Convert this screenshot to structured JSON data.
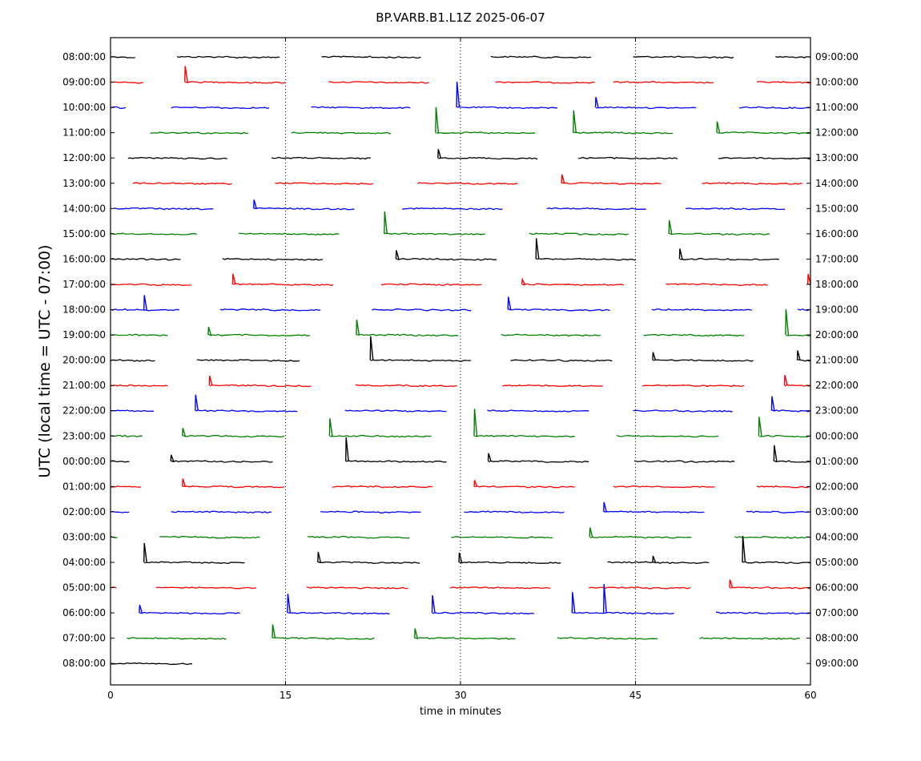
{
  "chart_data": {
    "type": "line",
    "title": "BP.VARB.B1.L1Z 2025-06-07",
    "xlabel": "time in minutes",
    "ylabel": "UTC (local time = UTC - 07:00)",
    "xlim": [
      0,
      60
    ],
    "xticks": [
      0,
      15,
      30,
      45,
      60
    ],
    "grid_x": [
      15,
      30,
      45
    ],
    "colors": [
      "#000000",
      "#ff0000",
      "#0000ff",
      "#008000"
    ],
    "rows": [
      {
        "left": "08:00:00",
        "right": "09:00:00",
        "segments": [
          [
            0,
            2.1
          ],
          [
            5.7,
            14.5
          ],
          [
            18.1,
            26.6
          ],
          [
            32.6,
            41.2
          ],
          [
            44.8,
            53.4
          ],
          [
            57,
            60
          ]
        ],
        "spikes": []
      },
      {
        "left": "09:00:00",
        "right": "10:00:00",
        "segments": [
          [
            0,
            2.8
          ],
          [
            6.4,
            15
          ],
          [
            18.7,
            27.3
          ],
          [
            33,
            41.5
          ],
          [
            43.1,
            51.7
          ],
          [
            55.4,
            60
          ]
        ],
        "spikes": [
          {
            "x": 6.4,
            "h": 20
          }
        ]
      },
      {
        "left": "10:00:00",
        "right": "11:00:00",
        "segments": [
          [
            0,
            1.3
          ],
          [
            5.2,
            13.6
          ],
          [
            17.2,
            25.7
          ],
          [
            29.7,
            38.3
          ],
          [
            41.6,
            50.2
          ],
          [
            53.9,
            60
          ]
        ],
        "spikes": [
          {
            "x": 29.7,
            "h": 32
          },
          {
            "x": 41.6,
            "h": 13
          }
        ]
      },
      {
        "left": "11:00:00",
        "right": "12:00:00",
        "segments": [
          [
            3.4,
            11.8
          ],
          [
            15.5,
            24
          ],
          [
            27.9,
            36.4
          ],
          [
            39.7,
            48.2
          ],
          [
            52,
            60
          ]
        ],
        "spikes": [
          {
            "x": 27.9,
            "h": 32
          },
          {
            "x": 39.7,
            "h": 28
          },
          {
            "x": 52,
            "h": 14
          }
        ]
      },
      {
        "left": "12:00:00",
        "right": "13:00:00",
        "segments": [
          [
            1.5,
            10
          ],
          [
            13.8,
            22.3
          ],
          [
            28.1,
            36.6
          ],
          [
            40.1,
            48.6
          ],
          [
            52.1,
            60
          ]
        ],
        "spikes": [
          {
            "x": 28.1,
            "h": 11
          }
        ]
      },
      {
        "left": "13:00:00",
        "right": "14:00:00",
        "segments": [
          [
            1.9,
            10.4
          ],
          [
            14.1,
            22.5
          ],
          [
            26.3,
            34.9
          ],
          [
            38.7,
            47.2
          ],
          [
            50.7,
            59.3
          ]
        ],
        "spikes": [
          {
            "x": 38.7,
            "h": 11
          }
        ]
      },
      {
        "left": "14:00:00",
        "right": "15:00:00",
        "segments": [
          [
            0.3,
            8.8
          ],
          [
            12.3,
            20.9
          ],
          [
            25,
            33.6
          ],
          [
            37.4,
            45.9
          ],
          [
            49.3,
            57.8
          ]
        ],
        "spikes": [
          {
            "x": 12.3,
            "h": 11
          }
        ]
      },
      {
        "left": "15:00:00",
        "right": "16:00:00",
        "segments": [
          [
            0,
            7.4
          ],
          [
            11,
            19.6
          ],
          [
            23.5,
            32.1
          ],
          [
            35.9,
            44.4
          ],
          [
            47.9,
            56.5
          ]
        ],
        "spikes": [
          {
            "x": 23.5,
            "h": 28
          },
          {
            "x": 47.9,
            "h": 17
          }
        ]
      },
      {
        "left": "16:00:00",
        "right": "17:00:00",
        "segments": [
          [
            0,
            6
          ],
          [
            9.6,
            18.2
          ],
          [
            24.5,
            33.1
          ],
          [
            36.5,
            45
          ],
          [
            48.8,
            57.3
          ]
        ],
        "spikes": [
          {
            "x": 24.5,
            "h": 11
          },
          {
            "x": 36.5,
            "h": 26
          },
          {
            "x": 48.8,
            "h": 13
          }
        ]
      },
      {
        "left": "17:00:00",
        "right": "18:00:00",
        "segments": [
          [
            0,
            6.9
          ],
          [
            10.5,
            19.1
          ],
          [
            23.2,
            31.8
          ],
          [
            35.3,
            44
          ],
          [
            47.6,
            56.3
          ],
          [
            59.8,
            60
          ]
        ],
        "spikes": [
          {
            "x": 10.5,
            "h": 13
          },
          {
            "x": 35.3,
            "h": 6
          },
          {
            "x": 59.8,
            "h": 13
          }
        ]
      },
      {
        "left": "18:00:00",
        "right": "19:00:00",
        "segments": [
          [
            0,
            5.9
          ],
          [
            9.4,
            18
          ],
          [
            22.4,
            30.9
          ],
          [
            34.1,
            42.8
          ],
          [
            46.4,
            55
          ],
          [
            58.9,
            60
          ]
        ],
        "spikes": [
          {
            "x": 2.9,
            "h": 18
          },
          {
            "x": 34.1,
            "h": 16
          }
        ]
      },
      {
        "left": "19:00:00",
        "right": "20:00:00",
        "segments": [
          [
            0,
            4.9
          ],
          [
            8.4,
            17.1
          ],
          [
            21.1,
            29.8
          ],
          [
            33.5,
            42
          ],
          [
            45.7,
            54.3
          ],
          [
            57.9,
            60
          ]
        ],
        "spikes": [
          {
            "x": 8.4,
            "h": 10
          },
          {
            "x": 21.1,
            "h": 19
          },
          {
            "x": 57.9,
            "h": 32
          }
        ]
      },
      {
        "left": "20:00:00",
        "right": "21:00:00",
        "segments": [
          [
            0,
            3.8
          ],
          [
            7.4,
            16.2
          ],
          [
            22.3,
            30.9
          ],
          [
            34.3,
            43
          ],
          [
            46.5,
            55.1
          ],
          [
            58.9,
            60
          ]
        ],
        "spikes": [
          {
            "x": 22.3,
            "h": 30
          },
          {
            "x": 46.5,
            "h": 10
          },
          {
            "x": 58.9,
            "h": 12
          }
        ]
      },
      {
        "left": "21:00:00",
        "right": "22:00:00",
        "segments": [
          [
            0,
            4.9
          ],
          [
            8.5,
            17.2
          ],
          [
            21,
            29.7
          ],
          [
            33.6,
            42.2
          ],
          [
            45.6,
            54.3
          ],
          [
            57.8,
            60
          ]
        ],
        "spikes": [
          {
            "x": 8.5,
            "h": 12
          },
          {
            "x": 57.8,
            "h": 13
          }
        ]
      },
      {
        "left": "22:00:00",
        "right": "23:00:00",
        "segments": [
          [
            0,
            3.7
          ],
          [
            7.3,
            16
          ],
          [
            20.1,
            28.8
          ],
          [
            32.3,
            41
          ],
          [
            44.8,
            53.3
          ],
          [
            56.7,
            60
          ]
        ],
        "spikes": [
          {
            "x": 7.3,
            "h": 20
          },
          {
            "x": 56.7,
            "h": 18
          }
        ]
      },
      {
        "left": "23:00:00",
        "right": "00:00:00",
        "segments": [
          [
            0,
            2.7
          ],
          [
            6.2,
            14.9
          ],
          [
            18.8,
            27.5
          ],
          [
            31.2,
            39.8
          ],
          [
            43.4,
            52.1
          ],
          [
            55.6,
            60
          ]
        ],
        "spikes": [
          {
            "x": 6.2,
            "h": 10
          },
          {
            "x": 18.8,
            "h": 22
          },
          {
            "x": 31.2,
            "h": 34
          },
          {
            "x": 55.6,
            "h": 24
          }
        ]
      },
      {
        "left": "00:00:00",
        "right": "01:00:00",
        "segments": [
          [
            0,
            1.6
          ],
          [
            5.2,
            13.9
          ],
          [
            20.2,
            28.8
          ],
          [
            32.4,
            41
          ],
          [
            44.9,
            53.5
          ],
          [
            56.9,
            60
          ]
        ],
        "spikes": [
          {
            "x": 5.2,
            "h": 8
          },
          {
            "x": 20.2,
            "h": 30
          },
          {
            "x": 32.4,
            "h": 10
          },
          {
            "x": 56.9,
            "h": 20
          }
        ]
      },
      {
        "left": "01:00:00",
        "right": "02:00:00",
        "segments": [
          [
            0,
            2.6
          ],
          [
            6.2,
            14.9
          ],
          [
            19,
            27.6
          ],
          [
            31.2,
            39.8
          ],
          [
            43.1,
            51.8
          ],
          [
            55.4,
            60
          ]
        ],
        "spikes": [
          {
            "x": 6.2,
            "h": 10
          },
          {
            "x": 31.2,
            "h": 8
          }
        ]
      },
      {
        "left": "02:00:00",
        "right": "03:00:00",
        "segments": [
          [
            0,
            1.6
          ],
          [
            5.2,
            13.8
          ],
          [
            18,
            26.6
          ],
          [
            30.3,
            38.9
          ],
          [
            42.3,
            50.9
          ],
          [
            54.5,
            60
          ]
        ],
        "spikes": [
          {
            "x": 42.3,
            "h": 12
          }
        ]
      },
      {
        "left": "03:00:00",
        "right": "04:00:00",
        "segments": [
          [
            0,
            0.6
          ],
          [
            4.2,
            12.8
          ],
          [
            16.9,
            25.6
          ],
          [
            29.2,
            37.9
          ],
          [
            41.1,
            49.8
          ],
          [
            53.5,
            60
          ]
        ],
        "spikes": [
          {
            "x": 41.1,
            "h": 12
          }
        ]
      },
      {
        "left": "04:00:00",
        "right": "05:00:00",
        "segments": [
          [
            2.9,
            11.5
          ],
          [
            17.8,
            26.5
          ],
          [
            29.9,
            38.6
          ],
          [
            42.6,
            51.3
          ],
          [
            54.2,
            60
          ]
        ],
        "spikes": [
          {
            "x": 2.9,
            "h": 24
          },
          {
            "x": 17.8,
            "h": 13
          },
          {
            "x": 29.9,
            "h": 12
          },
          {
            "x": 46.5,
            "h": 8
          },
          {
            "x": 54.2,
            "h": 33
          }
        ]
      },
      {
        "left": "05:00:00",
        "right": "06:00:00",
        "segments": [
          [
            0,
            0.5
          ],
          [
            3.9,
            12.5
          ],
          [
            16.8,
            25.5
          ],
          [
            29.1,
            37.7
          ],
          [
            41,
            49.7
          ],
          [
            53.1,
            60
          ]
        ],
        "spikes": [
          {
            "x": 53.1,
            "h": 10
          }
        ]
      },
      {
        "left": "06:00:00",
        "right": "07:00:00",
        "segments": [
          [
            2.5,
            11.1
          ],
          [
            15.2,
            23.9
          ],
          [
            27.6,
            36.3
          ],
          [
            39.6,
            48.3
          ],
          [
            51.9,
            60
          ]
        ],
        "spikes": [
          {
            "x": 2.5,
            "h": 10
          },
          {
            "x": 15.2,
            "h": 24
          },
          {
            "x": 27.6,
            "h": 22
          },
          {
            "x": 39.6,
            "h": 26
          },
          {
            "x": 42.3,
            "h": 36
          }
        ]
      },
      {
        "left": "07:00:00",
        "right": "08:00:00",
        "segments": [
          [
            1.4,
            9.9
          ],
          [
            13.9,
            22.6
          ],
          [
            26.1,
            34.7
          ],
          [
            38.3,
            46.9
          ],
          [
            50.5,
            59.1
          ]
        ],
        "spikes": [
          {
            "x": 13.9,
            "h": 17
          },
          {
            "x": 26.1,
            "h": 12
          }
        ]
      },
      {
        "left": "08:00:00",
        "right": "09:00:00",
        "segments": [
          [
            0,
            7
          ]
        ],
        "spikes": []
      }
    ]
  }
}
